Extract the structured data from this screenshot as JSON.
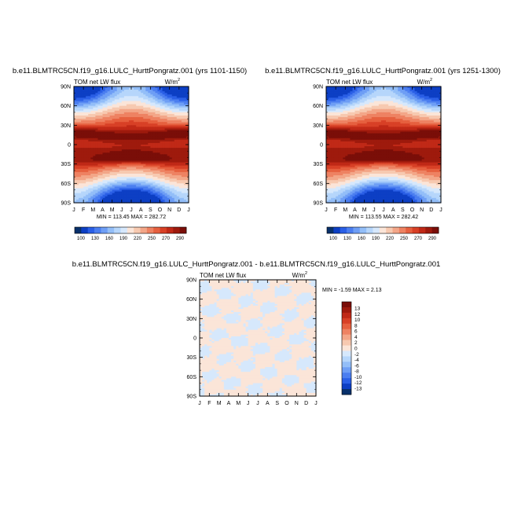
{
  "colormap_abs": [
    "#08306b",
    "#0d3fc4",
    "#2a5fe6",
    "#4b7ef0",
    "#6e9ef5",
    "#93bef8",
    "#b6d6fb",
    "#d6e8fc",
    "#fbe5d8",
    "#f7c9b0",
    "#f3a688",
    "#ee8262",
    "#e6603f",
    "#d84026",
    "#c02917",
    "#9e1a0d",
    "#7a0e08"
  ],
  "colormap_diff": [
    "#08306b",
    "#0d3fc4",
    "#2a5fe6",
    "#4b7ef0",
    "#6e9ef5",
    "#93bef8",
    "#b6d6fb",
    "#d6e8fc",
    "#fbe5d8",
    "#f7c9b0",
    "#f3a688",
    "#ee8262",
    "#e6603f",
    "#d84026",
    "#c02917",
    "#9e1a0d",
    "#7a0e08"
  ],
  "chart_data": [
    {
      "type": "heatmap",
      "title": "b.e11.BLMTRC5CN.f19_g16.LULC_HurttPongratz.001 (yrs 1101-1150)",
      "left_label": "TOM net LW flux",
      "unit_label": "W/m",
      "unit_exp": "2",
      "stats": "MIN = 113.45 MAX = 282.72",
      "x_ticks": [
        "J",
        "F",
        "M",
        "A",
        "M",
        "J",
        "J",
        "A",
        "S",
        "O",
        "N",
        "D",
        "J"
      ],
      "y_ticks": [
        "90N",
        "60N",
        "30N",
        "0",
        "30S",
        "60S",
        "90S"
      ],
      "ylim": [
        -90,
        90
      ],
      "colorbar_labels": [
        "100",
        "130",
        "160",
        "190",
        "220",
        "250",
        "270",
        "290"
      ],
      "field": "toa_lw_abs",
      "seed": 1
    },
    {
      "type": "heatmap",
      "title": "b.e11.BLMTRC5CN.f19_g16.LULC_HurttPongratz.001 (yrs 1251-1300)",
      "left_label": "TOM net LW flux",
      "unit_label": "W/m",
      "unit_exp": "2",
      "stats": "MIN = 113.55 MAX = 282.42",
      "x_ticks": [
        "J",
        "F",
        "M",
        "A",
        "M",
        "J",
        "J",
        "A",
        "S",
        "O",
        "N",
        "D",
        "J"
      ],
      "y_ticks": [
        "90N",
        "60N",
        "30N",
        "0",
        "30S",
        "60S",
        "90S"
      ],
      "ylim": [
        -90,
        90
      ],
      "colorbar_labels": [
        "100",
        "130",
        "160",
        "190",
        "220",
        "250",
        "270",
        "290"
      ],
      "field": "toa_lw_abs",
      "seed": 2
    },
    {
      "type": "heatmap",
      "title": "b.e11.BLMTRC5CN.f19_g16.LULC_HurttPongratz.001 - b.e11.BLMTRC5CN.f19_g16.LULC_HurttPongratz.001",
      "left_label": "TOM net LW flux",
      "unit_label": "W/m",
      "unit_exp": "2",
      "stats": "MIN =  -1.59 MAX =   2.13",
      "x_ticks": [
        "J",
        "F",
        "M",
        "A",
        "M",
        "J",
        "J",
        "A",
        "S",
        "O",
        "N",
        "D",
        "J"
      ],
      "y_ticks": [
        "90N",
        "60N",
        "30N",
        "0",
        "30S",
        "60S",
        "90S"
      ],
      "ylim": [
        -90,
        90
      ],
      "colorbar_labels": [
        "13",
        "12",
        "10",
        "8",
        "6",
        "4",
        "2",
        "0",
        "-2",
        "-4",
        "-6",
        "-8",
        "-10",
        "-12",
        "-13"
      ],
      "field": "toa_lw_diff",
      "seed": 3
    }
  ]
}
